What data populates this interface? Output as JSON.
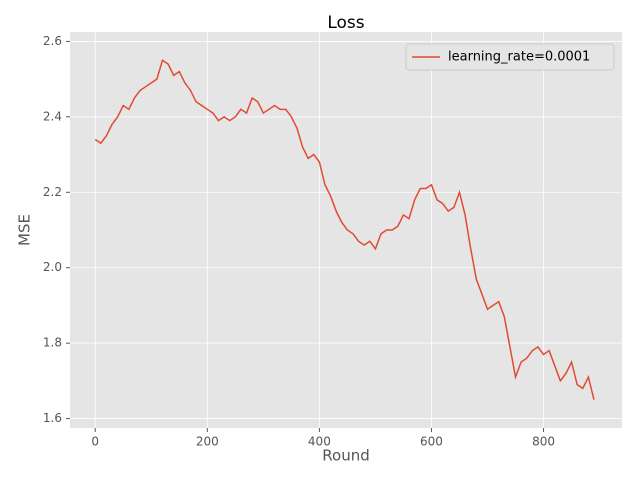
{
  "chart_data": {
    "type": "line",
    "title": "Loss",
    "xlabel": "Round",
    "ylabel": "MSE",
    "x": [
      0,
      10,
      20,
      30,
      40,
      50,
      60,
      70,
      80,
      90,
      100,
      110,
      120,
      130,
      140,
      150,
      160,
      170,
      180,
      190,
      200,
      210,
      220,
      230,
      240,
      250,
      260,
      270,
      280,
      290,
      300,
      310,
      320,
      330,
      340,
      350,
      360,
      370,
      380,
      390,
      400,
      410,
      420,
      430,
      440,
      450,
      460,
      470,
      480,
      490,
      500,
      510,
      520,
      530,
      540,
      550,
      560,
      570,
      580,
      590,
      600,
      610,
      620,
      630,
      640,
      650,
      660,
      670,
      680,
      690,
      700,
      710,
      720,
      730,
      740,
      750,
      760,
      770,
      780,
      790,
      800,
      810,
      820,
      830,
      840,
      850,
      860,
      870,
      880,
      890
    ],
    "series": [
      {
        "name": "learning_rate=0.0001",
        "color": "#e24a33",
        "values": [
          2.34,
          2.33,
          2.35,
          2.38,
          2.4,
          2.43,
          2.42,
          2.45,
          2.47,
          2.48,
          2.49,
          2.5,
          2.55,
          2.54,
          2.51,
          2.52,
          2.49,
          2.47,
          2.44,
          2.43,
          2.42,
          2.41,
          2.39,
          2.4,
          2.39,
          2.4,
          2.42,
          2.41,
          2.45,
          2.44,
          2.41,
          2.42,
          2.43,
          2.42,
          2.42,
          2.4,
          2.37,
          2.32,
          2.29,
          2.3,
          2.28,
          2.22,
          2.19,
          2.15,
          2.12,
          2.1,
          2.09,
          2.07,
          2.06,
          2.07,
          2.05,
          2.09,
          2.1,
          2.1,
          2.11,
          2.14,
          2.13,
          2.18,
          2.21,
          2.21,
          2.22,
          2.18,
          2.17,
          2.15,
          2.16,
          2.2,
          2.14,
          2.05,
          1.97,
          1.93,
          1.89,
          1.9,
          1.91,
          1.87,
          1.79,
          1.71,
          1.75,
          1.76,
          1.78,
          1.79,
          1.77,
          1.78,
          1.74,
          1.7,
          1.72,
          1.75,
          1.69,
          1.68,
          1.71,
          1.65
        ]
      }
    ],
    "xlim": [
      -45,
      940
    ],
    "ylim": [
      1.575,
      2.625
    ],
    "xticks": [
      0,
      200,
      400,
      600,
      800
    ],
    "yticks": [
      1.6,
      1.8,
      {
        "value": 2.0,
        "label": "2.0"
      },
      2.2,
      2.4,
      2.6
    ],
    "grid": true,
    "legend": "upper right"
  }
}
